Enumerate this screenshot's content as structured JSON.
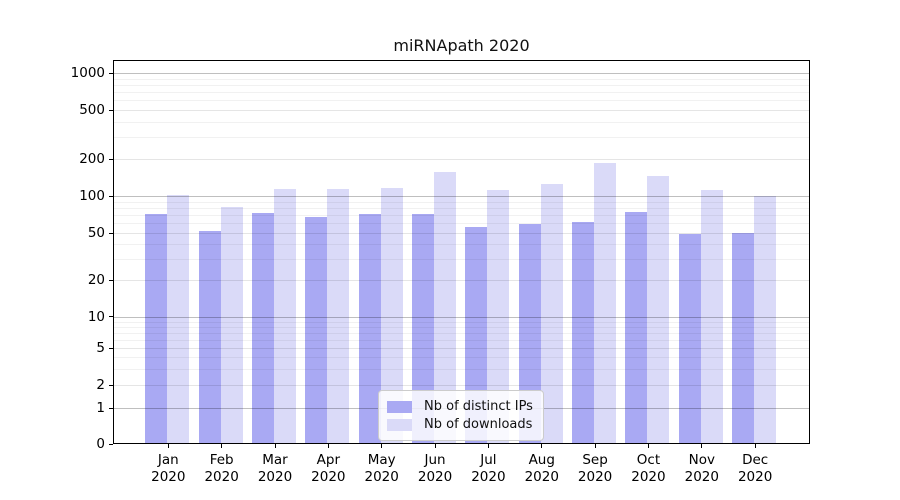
{
  "title": "miRNApath 2020",
  "chart_data": {
    "type": "bar",
    "title": "miRNApath 2020",
    "categories": [
      "Jan 2020",
      "Feb 2020",
      "Mar 2020",
      "Apr 2020",
      "May 2020",
      "Jun 2020",
      "Jul 2020",
      "Aug 2020",
      "Sep 2020",
      "Oct 2020",
      "Nov 2020",
      "Dec 2020"
    ],
    "series": [
      {
        "name": "Nb of distinct IPs",
        "color": "#a9a9f3",
        "values": [
          72,
          52,
          73,
          68,
          71,
          72,
          56,
          59,
          61,
          74,
          49,
          50
        ]
      },
      {
        "name": "Nb of downloads",
        "color": "#dadaf8",
        "values": [
          102,
          82,
          115,
          115,
          116,
          158,
          112,
          126,
          184,
          145,
          112,
          100
        ]
      }
    ],
    "yscale": "symlog",
    "yticks": [
      0,
      1,
      2,
      5,
      10,
      20,
      50,
      100,
      200,
      500,
      1000
    ],
    "ylim": [
      0,
      1290
    ],
    "xlabel": "",
    "ylabel": "",
    "grid": true,
    "legend_position": "lower-center",
    "colors": {
      "distinct_ips": "#a9a9f3",
      "downloads": "#dadaf8"
    }
  }
}
